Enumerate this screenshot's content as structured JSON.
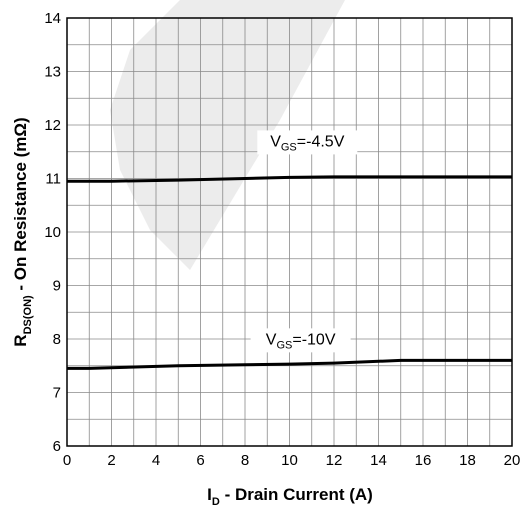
{
  "chart_data": {
    "type": "line",
    "xlabel": {
      "main": "I",
      "sub": "D",
      "rest": " - Drain Current (A)"
    },
    "ylabel": {
      "main": "R",
      "sub": "DS(ON)",
      "rest": " - On Resistance (mΩ)"
    },
    "xlim": [
      0,
      20
    ],
    "ylim": [
      6,
      14
    ],
    "x_ticks": [
      0,
      2,
      4,
      6,
      8,
      10,
      12,
      14,
      16,
      18,
      20
    ],
    "y_ticks": [
      6,
      7,
      8,
      9,
      10,
      11,
      12,
      13,
      14
    ],
    "x_tick_labels": [
      "0",
      "2",
      "4",
      "6",
      "8",
      "10",
      "12",
      "14",
      "16",
      "18",
      "20"
    ],
    "y_tick_labels": [
      "6",
      "7",
      "8",
      "9",
      "10",
      "11",
      "12",
      "13",
      "14"
    ],
    "grid": true,
    "minor_grid_x": 1,
    "minor_grid_y": 0.5,
    "series": [
      {
        "label": {
          "main": "V",
          "sub": "GS",
          "rest": "=-4.5V"
        },
        "label_at": {
          "x": 10.8,
          "y": 11.6
        },
        "color": "#000000",
        "x": [
          0,
          2,
          5,
          8,
          10,
          12,
          15,
          20
        ],
        "y": [
          10.95,
          10.95,
          10.97,
          11.0,
          11.02,
          11.03,
          11.03,
          11.03
        ]
      },
      {
        "label": {
          "main": "V",
          "sub": "GS",
          "rest": "=-10V"
        },
        "label_at": {
          "x": 10.5,
          "y": 7.9
        },
        "color": "#000000",
        "x": [
          0,
          1,
          5,
          8,
          10,
          12,
          15,
          20
        ],
        "y": [
          7.45,
          7.45,
          7.5,
          7.52,
          7.53,
          7.55,
          7.6,
          7.6
        ]
      }
    ]
  }
}
